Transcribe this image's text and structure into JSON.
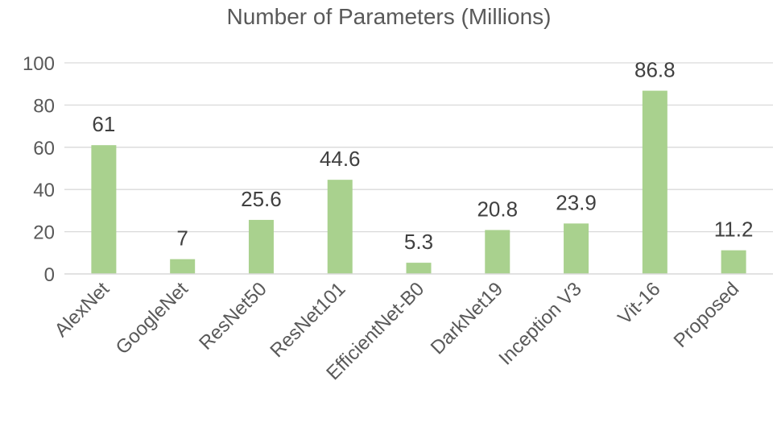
{
  "chart_data": {
    "type": "bar",
    "title": "Number of Parameters (Millions)",
    "xlabel": "",
    "ylabel": "",
    "categories": [
      "AlexNet",
      "GoogleNet",
      "ResNet50",
      "ResNet101",
      "EfficientNet-B0",
      "DarkNet19",
      "Inception V3",
      "Vit-16",
      "Proposed"
    ],
    "values": [
      61,
      7,
      25.6,
      44.6,
      5.3,
      20.8,
      23.9,
      86.8,
      11.2
    ],
    "value_labels": [
      "61",
      "7",
      "25.6",
      "44.6",
      "5.3",
      "20.8",
      "23.9",
      "86.8",
      "11.2"
    ],
    "ylim": [
      0,
      100
    ],
    "yticks": [
      0,
      20,
      40,
      60,
      80,
      100
    ],
    "ytick_labels": [
      "0",
      "20",
      "40",
      "60",
      "80",
      "100"
    ],
    "grid": true,
    "legend": "none",
    "bar_color": "#a9d18e"
  }
}
